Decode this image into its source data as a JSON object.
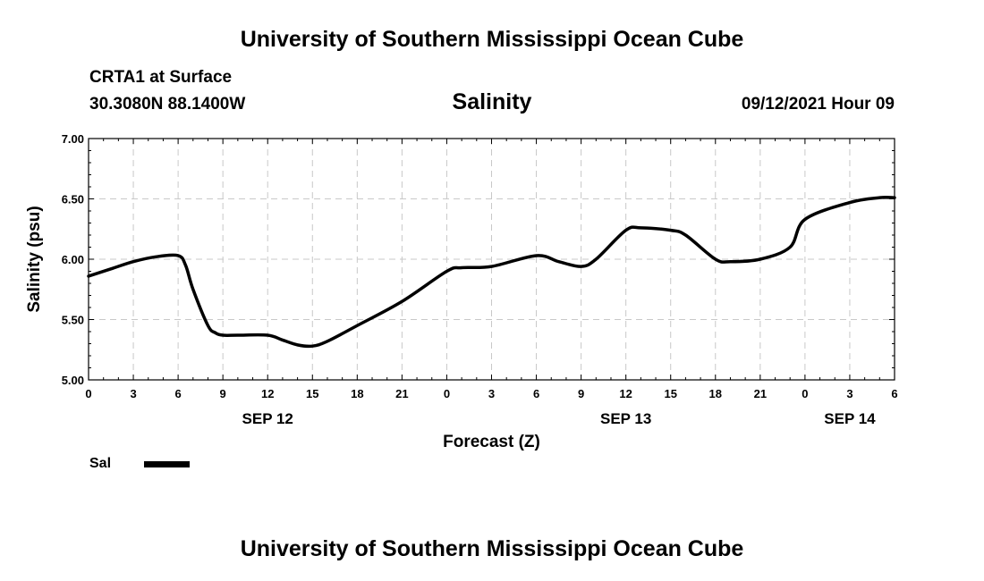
{
  "header": {
    "title": "University of Southern Mississippi Ocean Cube",
    "station": "CRTA1 at Surface",
    "coords": "30.3080N  88.1400W",
    "variable": "Salinity",
    "datetime": "09/12/2021 Hour 09"
  },
  "footer": {
    "title": "University of Southern Mississippi Ocean Cube"
  },
  "legend": {
    "label": "Sal"
  },
  "chart_data": {
    "type": "line",
    "title": "Salinity",
    "xlabel": "Forecast (Z)",
    "ylabel": "Salinity (psu)",
    "xlim": [
      0,
      54
    ],
    "ylim": [
      5.0,
      7.0
    ],
    "y_ticks": [
      5.0,
      5.5,
      6.0,
      6.5,
      7.0
    ],
    "y_tick_labels": [
      "5.00",
      "5.50",
      "6.00",
      "6.50",
      "7.00"
    ],
    "x_ticks": [
      0,
      3,
      6,
      9,
      12,
      15,
      18,
      21,
      24,
      27,
      30,
      33,
      36,
      39,
      42,
      45,
      48,
      51,
      54
    ],
    "x_tick_labels": [
      "0",
      "3",
      "6",
      "9",
      "12",
      "15",
      "18",
      "21",
      "0",
      "3",
      "6",
      "9",
      "12",
      "15",
      "18",
      "21",
      "0",
      "3",
      "6"
    ],
    "day_labels": [
      {
        "x": 12,
        "label": "SEP 12"
      },
      {
        "x": 36,
        "label": "SEP 13"
      },
      {
        "x": 51,
        "label": "SEP 14"
      }
    ],
    "grid": true,
    "series": [
      {
        "name": "Sal",
        "x": [
          0,
          1.5,
          3,
          4.5,
          6,
          6.5,
          7,
          8,
          8.5,
          9,
          10,
          12,
          13,
          14,
          15,
          16,
          18,
          21,
          24,
          25,
          27,
          30,
          31.5,
          33,
          34,
          36,
          37,
          39,
          40,
          42,
          43,
          45,
          47,
          48,
          51,
          53,
          54
        ],
        "values": [
          5.86,
          5.92,
          5.98,
          6.02,
          6.03,
          5.95,
          5.75,
          5.45,
          5.39,
          5.37,
          5.37,
          5.37,
          5.33,
          5.29,
          5.28,
          5.32,
          5.45,
          5.65,
          5.9,
          5.93,
          5.94,
          6.03,
          5.98,
          5.94,
          6.0,
          6.24,
          6.26,
          6.24,
          6.2,
          6.0,
          5.98,
          6.0,
          6.1,
          6.33,
          6.47,
          6.51,
          6.51
        ]
      }
    ]
  }
}
